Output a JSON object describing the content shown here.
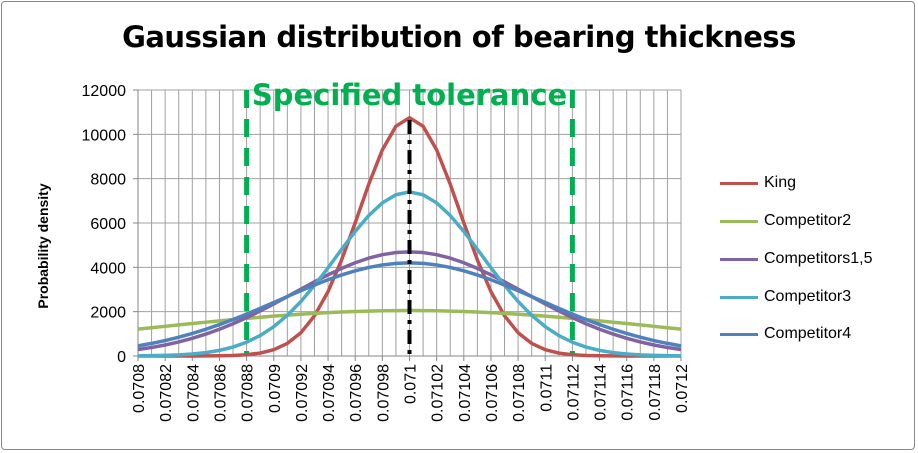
{
  "chart_data": {
    "type": "line",
    "title": "Gaussian distribution of bearing thickness",
    "xlabel": "",
    "ylabel": "Probability density",
    "ylim": [
      0,
      12000
    ],
    "yticks": [
      "0",
      "2000",
      "4000",
      "6000",
      "8000",
      "10000",
      "12000"
    ],
    "grid": true,
    "legend_position": "right",
    "x": [
      0.0708,
      0.07081,
      0.07082,
      0.07083,
      0.07084,
      0.07085,
      0.07086,
      0.07087,
      0.07088,
      0.07089,
      0.0709,
      0.07091,
      0.07092,
      0.07093,
      0.07094,
      0.07095,
      0.07096,
      0.07097,
      0.07098,
      0.07099,
      0.071,
      0.07101,
      0.07102,
      0.07103,
      0.07104,
      0.07105,
      0.07106,
      0.07107,
      0.07108,
      0.07109,
      0.0711,
      0.07111,
      0.07112,
      0.07113,
      0.07114,
      0.07115,
      0.07116,
      0.07117,
      0.07118,
      0.07119,
      0.0712
    ],
    "xtick_labels": [
      "0.0708",
      "0.07082",
      "0.07084",
      "0.07086",
      "0.07088",
      "0.0709",
      "0.07092",
      "0.07094",
      "0.07096",
      "0.07098",
      "0.071",
      "0.07102",
      "0.07104",
      "0.07106",
      "0.07108",
      "0.0711",
      "0.07112",
      "0.07114",
      "0.07116",
      "0.07118",
      "0.0712"
    ],
    "series": [
      {
        "name": "King",
        "color": "#c0504d",
        "values": [
          0,
          0,
          0,
          0,
          1,
          3,
          9,
          23,
          58,
          133,
          284,
          567,
          1051,
          1813,
          2906,
          4335,
          6011,
          7752,
          9298,
          10367,
          10750,
          10367,
          9298,
          7752,
          6011,
          4335,
          2906,
          1813,
          1051,
          567,
          284,
          133,
          58,
          23,
          9,
          3,
          1,
          0,
          0,
          0,
          0
        ]
      },
      {
        "name": "Competitor2",
        "color": "#9bbb59",
        "values": [
          1212,
          1276,
          1339,
          1402,
          1464,
          1525,
          1584,
          1641,
          1696,
          1748,
          1797,
          1843,
          1884,
          1922,
          1955,
          1984,
          2007,
          2026,
          2039,
          2047,
          2050,
          2047,
          2039,
          2026,
          2007,
          1984,
          1955,
          1922,
          1884,
          1843,
          1797,
          1748,
          1696,
          1641,
          1584,
          1525,
          1464,
          1402,
          1339,
          1276,
          1212
        ]
      },
      {
        "name": "Competitors1,5",
        "color": "#8064a2",
        "values": [
          293,
          384,
          497,
          634,
          796,
          988,
          1207,
          1456,
          1731,
          2031,
          2349,
          2680,
          3015,
          3346,
          3661,
          3952,
          4206,
          4416,
          4571,
          4667,
          4700,
          4667,
          4571,
          4416,
          4206,
          3952,
          3661,
          3346,
          3015,
          2680,
          2349,
          2031,
          1731,
          1456,
          1207,
          988,
          796,
          634,
          497,
          384,
          293
        ]
      },
      {
        "name": "Competitor3",
        "color": "#4bacc6",
        "values": [
          8,
          15,
          28,
          51,
          90,
          154,
          254,
          404,
          621,
          922,
          1324,
          1836,
          2460,
          3184,
          3981,
          4813,
          5619,
          6337,
          6908,
          7274,
          7400,
          7274,
          6908,
          6337,
          5619,
          4813,
          3981,
          3184,
          2460,
          1836,
          1324,
          922,
          621,
          404,
          254,
          154,
          90,
          51,
          28,
          15,
          8
        ]
      },
      {
        "name": "Competitor4",
        "color": "#4f81bd",
        "values": [
          458,
          568,
          698,
          847,
          1017,
          1207,
          1418,
          1647,
          1891,
          2148,
          2414,
          2681,
          2946,
          3201,
          3441,
          3657,
          3844,
          3996,
          4108,
          4177,
          4200,
          4177,
          4108,
          3996,
          3844,
          3657,
          3441,
          3201,
          2946,
          2681,
          2414,
          2148,
          1891,
          1647,
          1418,
          1207,
          1017,
          847,
          698,
          568,
          458
        ]
      }
    ],
    "annotations": {
      "tolerance_label": "Specified tolerance",
      "tolerance_color": "#00b050",
      "tolerance_lower": 0.07088,
      "tolerance_upper": 0.07112,
      "nominal": 0.071
    }
  }
}
